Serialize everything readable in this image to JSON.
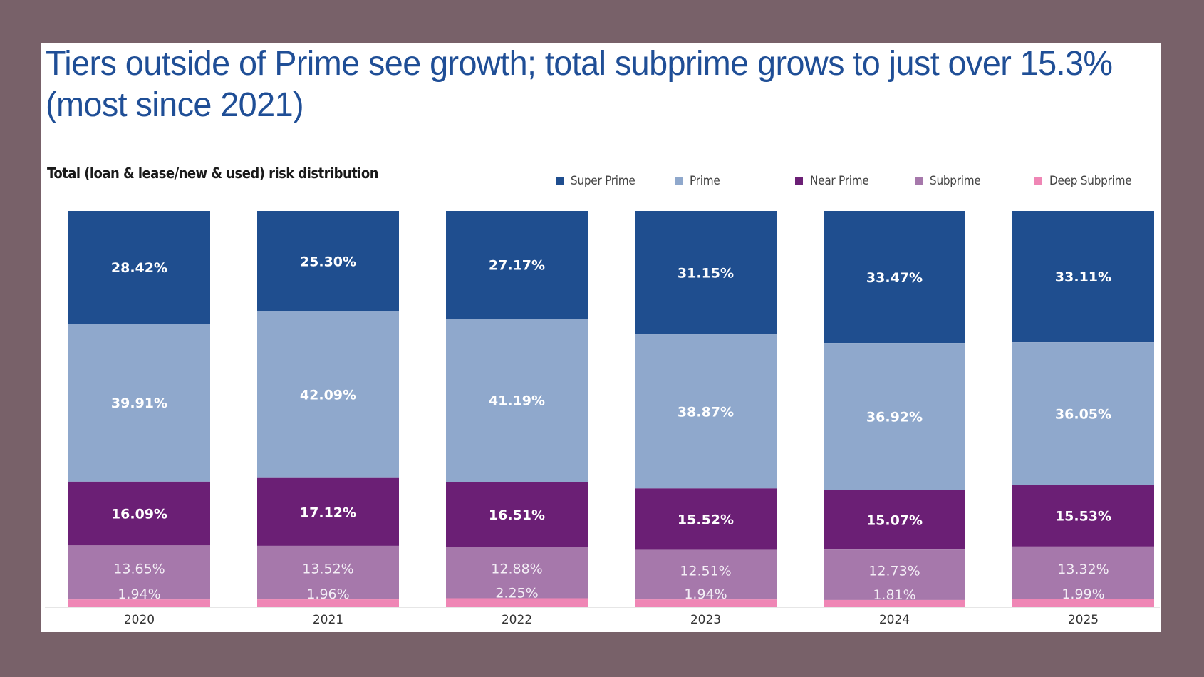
{
  "title": "Tiers outside of Prime see growth; total subprime grows to just over 15.3% (most since 2021)",
  "chart_data": {
    "type": "bar",
    "stacked": true,
    "normalized": true,
    "title": "Tiers outside of Prime see growth; total subprime grows to just over 15.3% (most since 2021)",
    "subtitle": "Total (loan & lease/new & used) risk distribution",
    "xlabel": "",
    "ylabel": "",
    "ylim": [
      0,
      100
    ],
    "grid": false,
    "legend_position": "top-right",
    "categories": [
      "2020",
      "2021",
      "2022",
      "2023",
      "2024",
      "2025"
    ],
    "series": [
      {
        "name": "Super Prime",
        "color": "#1f4e8f",
        "values": [
          28.42,
          25.3,
          27.17,
          31.15,
          33.47,
          33.11
        ],
        "labels": [
          "28.42%",
          "25.30%",
          "27.17%",
          "31.15%",
          "33.47%",
          "33.11%"
        ]
      },
      {
        "name": "Prime",
        "color": "#8fa8cc",
        "values": [
          39.91,
          42.09,
          41.19,
          38.87,
          36.92,
          36.05
        ],
        "labels": [
          "39.91%",
          "42.09%",
          "41.19%",
          "38.87%",
          "36.92%",
          "36.05%"
        ]
      },
      {
        "name": "Near Prime",
        "color": "#6b1f75",
        "values": [
          16.09,
          17.12,
          16.51,
          15.52,
          15.07,
          15.53
        ],
        "labels": [
          "16.09%",
          "17.12%",
          "16.51%",
          "15.52%",
          "15.07%",
          "15.53%"
        ]
      },
      {
        "name": "Subprime",
        "color": "#a678ab",
        "values": [
          13.65,
          13.52,
          12.88,
          12.51,
          12.73,
          13.32
        ],
        "labels": [
          "13.65%",
          "13.52%",
          "12.88%",
          "12.51%",
          "12.73%",
          "13.32%"
        ]
      },
      {
        "name": "Deep Subprime",
        "color": "#ef86b5",
        "values": [
          1.94,
          1.96,
          2.25,
          1.94,
          1.81,
          1.99
        ],
        "labels": [
          "1.94%",
          "1.96%",
          "2.25%",
          "1.94%",
          "1.81%",
          "1.99%"
        ]
      }
    ]
  }
}
